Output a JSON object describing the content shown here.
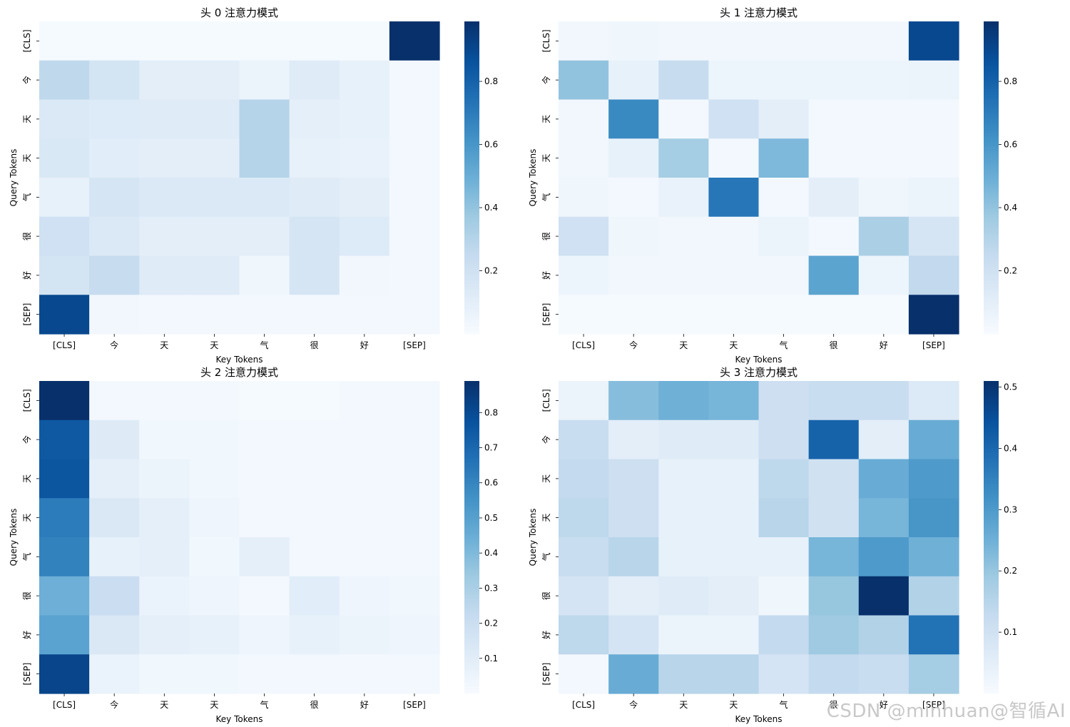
{
  "chart_data": [
    {
      "type": "heatmap",
      "title": "头 0 注意力模式",
      "xlabel": "Key Tokens",
      "ylabel": "Query Tokens",
      "x_ticklabels": [
        "[CLS]",
        "今",
        "天",
        "天",
        "气",
        "很",
        "好",
        "[SEP]"
      ],
      "y_ticklabels": [
        "[CLS]",
        "今",
        "天",
        "天",
        "气",
        "很",
        "好",
        "[SEP]"
      ],
      "colormap": "Blues",
      "vmin": 0.0,
      "vmax": 0.99,
      "colorbar_ticks": [
        "0.2",
        "0.4",
        "0.6",
        "0.8"
      ],
      "values": [
        [
          0.01,
          0.01,
          0.01,
          0.01,
          0.01,
          0.01,
          0.01,
          0.99
        ],
        [
          0.27,
          0.18,
          0.1,
          0.1,
          0.06,
          0.12,
          0.08,
          0.02
        ],
        [
          0.14,
          0.13,
          0.12,
          0.12,
          0.3,
          0.09,
          0.08,
          0.02
        ],
        [
          0.15,
          0.11,
          0.1,
          0.1,
          0.3,
          0.08,
          0.07,
          0.02
        ],
        [
          0.08,
          0.17,
          0.14,
          0.14,
          0.14,
          0.12,
          0.1,
          0.02
        ],
        [
          0.2,
          0.14,
          0.1,
          0.1,
          0.1,
          0.17,
          0.13,
          0.02
        ],
        [
          0.18,
          0.24,
          0.12,
          0.12,
          0.04,
          0.17,
          0.03,
          0.02
        ],
        [
          0.9,
          0.03,
          0.02,
          0.02,
          0.02,
          0.02,
          0.02,
          0.02
        ]
      ]
    },
    {
      "type": "heatmap",
      "title": "头 1 注意力模式",
      "xlabel": "Key Tokens",
      "ylabel": "Query Tokens",
      "x_ticklabels": [
        "[CLS]",
        "今",
        "天",
        "天",
        "气",
        "很",
        "好",
        "[SEP]"
      ],
      "y_ticklabels": [
        "[CLS]",
        "今",
        "天",
        "天",
        "气",
        "很",
        "好",
        "[SEP]"
      ],
      "colormap": "Blues",
      "vmin": 0.0,
      "vmax": 0.99,
      "colorbar_ticks": [
        "0.2",
        "0.4",
        "0.6",
        "0.8"
      ],
      "values": [
        [
          0.03,
          0.04,
          0.03,
          0.03,
          0.03,
          0.03,
          0.03,
          0.9
        ],
        [
          0.4,
          0.08,
          0.24,
          0.05,
          0.05,
          0.05,
          0.05,
          0.06
        ],
        [
          0.03,
          0.65,
          0.02,
          0.2,
          0.1,
          0.02,
          0.02,
          0.02
        ],
        [
          0.03,
          0.08,
          0.35,
          0.02,
          0.45,
          0.02,
          0.02,
          0.02
        ],
        [
          0.04,
          0.02,
          0.07,
          0.72,
          0.02,
          0.1,
          0.04,
          0.06
        ],
        [
          0.2,
          0.04,
          0.03,
          0.03,
          0.06,
          0.02,
          0.33,
          0.17
        ],
        [
          0.05,
          0.03,
          0.03,
          0.03,
          0.03,
          0.54,
          0.05,
          0.26
        ],
        [
          0.01,
          0.01,
          0.01,
          0.01,
          0.01,
          0.01,
          0.01,
          0.99
        ]
      ]
    },
    {
      "type": "heatmap",
      "title": "头 2 注意力模式",
      "xlabel": "Key Tokens",
      "ylabel": "Query Tokens",
      "x_ticklabels": [
        "[CLS]",
        "今",
        "天",
        "天",
        "气",
        "很",
        "好",
        "[SEP]"
      ],
      "y_ticklabels": [
        "[CLS]",
        "今",
        "天",
        "天",
        "气",
        "很",
        "好",
        "[SEP]"
      ],
      "colormap": "Blues",
      "vmin": 0.0,
      "vmax": 0.89,
      "colorbar_ticks": [
        "0.1",
        "0.2",
        "0.3",
        "0.4",
        "0.5",
        "0.6",
        "0.7",
        "0.8"
      ],
      "values": [
        [
          0.89,
          0.02,
          0.02,
          0.02,
          0.01,
          0.01,
          0.02,
          0.02
        ],
        [
          0.75,
          0.11,
          0.03,
          0.03,
          0.02,
          0.02,
          0.02,
          0.02
        ],
        [
          0.76,
          0.08,
          0.05,
          0.03,
          0.02,
          0.02,
          0.02,
          0.02
        ],
        [
          0.63,
          0.13,
          0.08,
          0.04,
          0.02,
          0.02,
          0.02,
          0.02
        ],
        [
          0.61,
          0.07,
          0.08,
          0.03,
          0.08,
          0.02,
          0.02,
          0.02
        ],
        [
          0.44,
          0.2,
          0.06,
          0.04,
          0.02,
          0.1,
          0.04,
          0.03
        ],
        [
          0.49,
          0.13,
          0.08,
          0.07,
          0.04,
          0.07,
          0.05,
          0.04
        ],
        [
          0.82,
          0.06,
          0.03,
          0.03,
          0.02,
          0.02,
          0.02,
          0.02
        ]
      ]
    },
    {
      "type": "heatmap",
      "title": "头 3 注意力模式",
      "xlabel": "Key Tokens",
      "ylabel": "Query Tokens",
      "x_ticklabels": [
        "[CLS]",
        "今",
        "天",
        "天",
        "气",
        "很",
        "好",
        "[SEP]"
      ],
      "y_ticklabels": [
        "[CLS]",
        "今",
        "天",
        "天",
        "气",
        "很",
        "好",
        "[SEP]"
      ],
      "colormap": "Blues",
      "vmin": 0.0,
      "vmax": 0.51,
      "colorbar_ticks": [
        "0.1",
        "0.2",
        "0.3",
        "0.4",
        "0.5"
      ],
      "values": [
        [
          0.03,
          0.22,
          0.25,
          0.24,
          0.11,
          0.12,
          0.12,
          0.07
        ],
        [
          0.12,
          0.05,
          0.06,
          0.06,
          0.11,
          0.41,
          0.05,
          0.26
        ],
        [
          0.13,
          0.11,
          0.04,
          0.04,
          0.14,
          0.1,
          0.26,
          0.3
        ],
        [
          0.14,
          0.11,
          0.04,
          0.04,
          0.15,
          0.1,
          0.24,
          0.31
        ],
        [
          0.12,
          0.15,
          0.04,
          0.04,
          0.04,
          0.24,
          0.3,
          0.25
        ],
        [
          0.09,
          0.05,
          0.06,
          0.05,
          0.02,
          0.2,
          0.51,
          0.16
        ],
        [
          0.14,
          0.09,
          0.03,
          0.03,
          0.13,
          0.19,
          0.16,
          0.38
        ],
        [
          0.01,
          0.26,
          0.15,
          0.15,
          0.09,
          0.13,
          0.12,
          0.18
        ]
      ]
    }
  ],
  "watermark": "CSDN @minhuan@智循AI"
}
